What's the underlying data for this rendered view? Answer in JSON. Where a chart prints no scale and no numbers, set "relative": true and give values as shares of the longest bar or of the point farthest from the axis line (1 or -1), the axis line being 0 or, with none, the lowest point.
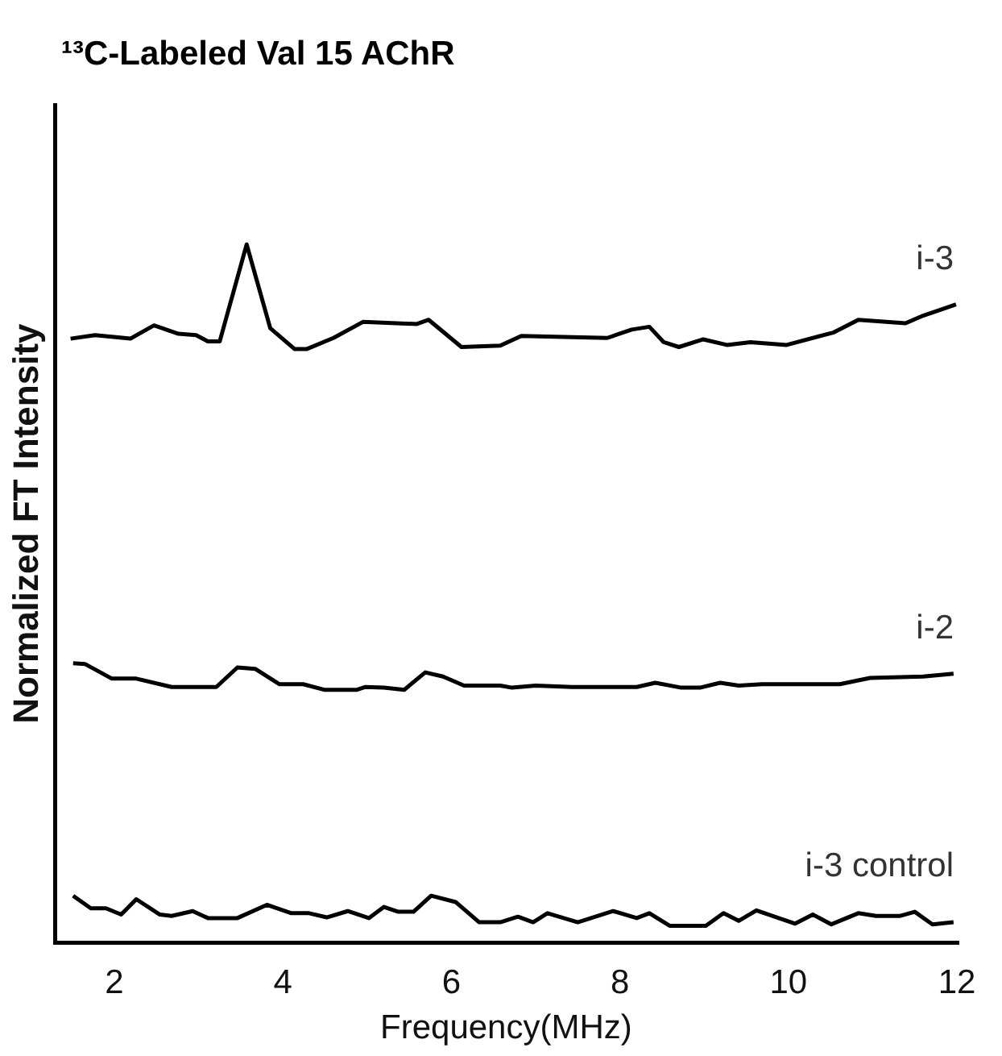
{
  "chart_data": {
    "type": "line",
    "title": "¹³C-Labeled Val 15 AChR",
    "xlabel": "Frequency(MHz)",
    "ylabel": "Normalized FT Intensity",
    "relative": true,
    "xlim": [
      1.3,
      12
    ],
    "xticks": [
      2,
      4,
      6,
      8,
      10,
      12
    ],
    "grid": false,
    "legend": false,
    "marker": "none",
    "line_style": "solid",
    "series": [
      {
        "name": "i-3",
        "color": "#000000",
        "x": [
          1.48,
          1.77,
          2.19,
          2.47,
          2.76,
          2.97,
          3.11,
          3.25,
          3.57,
          3.85,
          4.14,
          4.28,
          4.6,
          4.95,
          5.59,
          5.73,
          6.12,
          6.58,
          6.83,
          7.85,
          8.14,
          8.35,
          8.52,
          8.7,
          8.99,
          9.27,
          9.55,
          9.98,
          10.54,
          10.83,
          11.39,
          11.6,
          11.99
        ],
        "values": [
          0.865,
          0.87,
          0.865,
          0.884,
          0.872,
          0.87,
          0.861,
          0.861,
          1,
          0.88,
          0.85,
          0.85,
          0.866,
          0.889,
          0.886,
          0.892,
          0.853,
          0.855,
          0.869,
          0.866,
          0.878,
          0.882,
          0.86,
          0.853,
          0.864,
          0.856,
          0.86,
          0.856,
          0.874,
          0.892,
          0.887,
          0.898,
          0.914
        ]
      },
      {
        "name": "i-2",
        "color": "#000000",
        "x": [
          1.51,
          1.65,
          1.97,
          2.26,
          2.68,
          3.21,
          3.46,
          3.67,
          3.96,
          4.24,
          4.49,
          4.88,
          4.98,
          5.2,
          5.44,
          5.69,
          5.9,
          6.15,
          6.58,
          6.72,
          7,
          7.43,
          8.2,
          8.42,
          8.73,
          8.95,
          9.19,
          9.41,
          9.69,
          10.61,
          10.97,
          11.6,
          11.96
        ],
        "values": [
          0.4,
          0.399,
          0.378,
          0.378,
          0.366,
          0.366,
          0.394,
          0.392,
          0.37,
          0.37,
          0.362,
          0.362,
          0.366,
          0.365,
          0.362,
          0.387,
          0.381,
          0.368,
          0.368,
          0.365,
          0.368,
          0.366,
          0.366,
          0.372,
          0.365,
          0.365,
          0.372,
          0.368,
          0.37,
          0.37,
          0.379,
          0.381,
          0.385
        ]
      },
      {
        "name": "i-3 control",
        "color": "#000000",
        "x": [
          1.51,
          1.72,
          1.9,
          2.08,
          2.26,
          2.54,
          2.68,
          2.93,
          3.11,
          3.46,
          3.81,
          4.1,
          4.31,
          4.52,
          4.77,
          5.02,
          5.2,
          5.37,
          5.55,
          5.76,
          6.05,
          6.33,
          6.58,
          6.79,
          6.97,
          7.14,
          7.5,
          7.92,
          8.2,
          8.35,
          8.59,
          9.02,
          9.23,
          9.41,
          9.62,
          10.08,
          10.29,
          10.51,
          10.83,
          11.04,
          11.32,
          11.5,
          11.71,
          11.96
        ],
        "values": [
          0.067,
          0.049,
          0.049,
          0.04,
          0.062,
          0.04,
          0.038,
          0.045,
          0.035,
          0.035,
          0.054,
          0.042,
          0.042,
          0.036,
          0.045,
          0.035,
          0.051,
          0.044,
          0.044,
          0.067,
          0.058,
          0.029,
          0.029,
          0.037,
          0.029,
          0.042,
          0.029,
          0.045,
          0.035,
          0.042,
          0.024,
          0.024,
          0.042,
          0.031,
          0.046,
          0.027,
          0.04,
          0.026,
          0.042,
          0.038,
          0.038,
          0.044,
          0.026,
          0.029
        ]
      }
    ]
  }
}
